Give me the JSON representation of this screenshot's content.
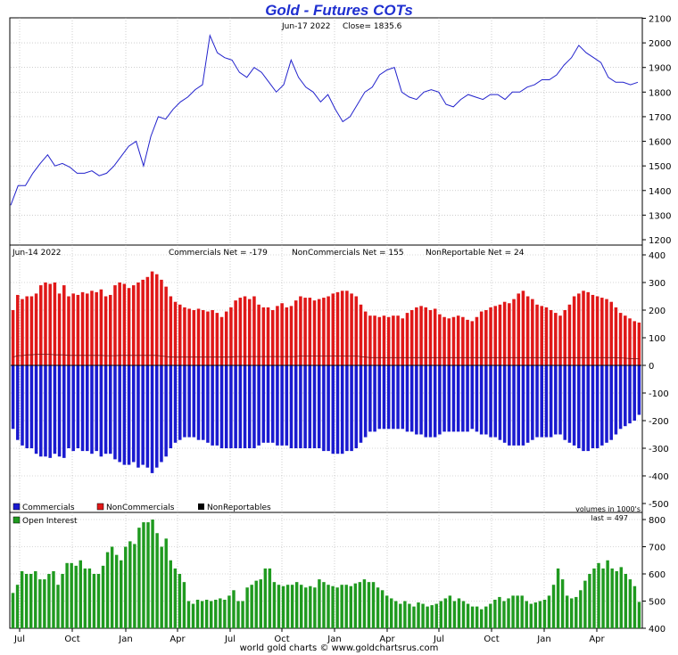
{
  "title": "Gold - Futures COTs",
  "footer": "world gold charts © www.goldchartsrus.com",
  "price_panel": {
    "date_label": "Jun-17  2022",
    "close_label": "Close= 1835.6"
  },
  "cot_panel": {
    "date_label": "Jun-14  2022",
    "commercials_label": "Commercials Net = -179",
    "noncommercials_label": "NonCommercials Net = 155",
    "nonreportable_label": "NonReportable Net = 24",
    "legend": [
      "Commercials",
      "NonCommercials",
      "NonReportables"
    ]
  },
  "oi_panel": {
    "legend": "Open Interest",
    "volumes_label": "volumes in 1000's",
    "last_label": "last = 497"
  },
  "colors": {
    "title": "#1f2fd0",
    "price_line": "#2222cc",
    "commercials": "#1a1ad0",
    "noncommercials": "#e01818",
    "nonreportables": "#000000",
    "open_interest": "#1f9a1f"
  },
  "chart_data": [
    {
      "type": "line",
      "title": "Gold - Futures COTs",
      "x_ticks": [
        "Jul",
        "Oct",
        "Jan",
        "Apr",
        "Jul",
        "Oct",
        "Jan",
        "Apr",
        "Jul",
        "Oct",
        "Jan",
        "Apr"
      ],
      "ylim": [
        1200,
        2100
      ],
      "y_ticks": [
        1200,
        1300,
        1400,
        1500,
        1600,
        1700,
        1800,
        1900,
        2000,
        2100
      ],
      "series": [
        {
          "values": [
            1340,
            1420,
            1420,
            1470,
            1510,
            1545,
            1500,
            1510,
            1495,
            1470,
            1470,
            1480,
            1460,
            1470,
            1500,
            1540,
            1580,
            1600,
            1500,
            1620,
            1700,
            1690,
            1730,
            1760,
            1780,
            1810,
            1830,
            2030,
            1960,
            1940,
            1930,
            1880,
            1860,
            1900,
            1880,
            1840,
            1800,
            1830,
            1930,
            1860,
            1820,
            1800,
            1760,
            1790,
            1730,
            1680,
            1700,
            1750,
            1800,
            1820,
            1870,
            1890,
            1900,
            1800,
            1780,
            1770,
            1800,
            1810,
            1800,
            1750,
            1740,
            1770,
            1790,
            1780,
            1770,
            1790,
            1790,
            1770,
            1800,
            1800,
            1820,
            1830,
            1850,
            1850,
            1870,
            1910,
            1940,
            1990,
            1960,
            1940,
            1920,
            1860,
            1840,
            1840,
            1830,
            1840
          ]
        }
      ]
    },
    {
      "type": "bar",
      "ylim": [
        -500,
        400
      ],
      "y_ticks": [
        -500,
        -400,
        -300,
        -200,
        -100,
        0,
        100,
        200,
        300,
        400
      ],
      "series": [
        {
          "name": "NonCommercials",
          "values": [
            200,
            255,
            240,
            250,
            250,
            260,
            290,
            300,
            295,
            300,
            260,
            290,
            250,
            260,
            255,
            265,
            260,
            270,
            265,
            275,
            250,
            255,
            290,
            300,
            295,
            280,
            290,
            300,
            310,
            320,
            340,
            330,
            310,
            285,
            250,
            230,
            220,
            210,
            205,
            200,
            205,
            200,
            195,
            200,
            190,
            175,
            195,
            210,
            235,
            245,
            250,
            240,
            250,
            220,
            210,
            210,
            200,
            215,
            225,
            210,
            215,
            235,
            250,
            245,
            245,
            235,
            240,
            245,
            250,
            260,
            265,
            270,
            270,
            260,
            250,
            220,
            195,
            180,
            180,
            175,
            180,
            175,
            180,
            180,
            170,
            190,
            200,
            210,
            215,
            210,
            200,
            205,
            185,
            175,
            170,
            175,
            180,
            175,
            165,
            160,
            175,
            195,
            200,
            210,
            215,
            220,
            230,
            225,
            240,
            260,
            270,
            250,
            240,
            220,
            215,
            210,
            200,
            190,
            180,
            200,
            220,
            250,
            260,
            270,
            265,
            255,
            250,
            245,
            240,
            230,
            210,
            190,
            180,
            170,
            160,
            155
          ]
        },
        {
          "name": "Commercials",
          "values": [
            -230,
            -270,
            -290,
            -300,
            -300,
            -320,
            -330,
            -330,
            -335,
            -320,
            -330,
            -335,
            -300,
            -310,
            -300,
            -310,
            -310,
            -320,
            -310,
            -330,
            -320,
            -320,
            -340,
            -350,
            -360,
            -360,
            -350,
            -370,
            -360,
            -370,
            -390,
            -370,
            -350,
            -330,
            -300,
            -280,
            -270,
            -260,
            -260,
            -260,
            -270,
            -270,
            -280,
            -290,
            -290,
            -300,
            -300,
            -300,
            -300,
            -300,
            -300,
            -300,
            -300,
            -290,
            -280,
            -280,
            -280,
            -290,
            -290,
            -290,
            -300,
            -300,
            -300,
            -300,
            -300,
            -300,
            -300,
            -310,
            -310,
            -320,
            -320,
            -320,
            -310,
            -310,
            -300,
            -280,
            -260,
            -240,
            -240,
            -230,
            -230,
            -230,
            -230,
            -230,
            -230,
            -240,
            -240,
            -250,
            -250,
            -260,
            -260,
            -260,
            -250,
            -240,
            -240,
            -240,
            -240,
            -240,
            -240,
            -230,
            -240,
            -250,
            -250,
            -260,
            -260,
            -270,
            -280,
            -290,
            -290,
            -290,
            -290,
            -280,
            -270,
            -260,
            -260,
            -260,
            -260,
            -250,
            -250,
            -270,
            -280,
            -290,
            -300,
            -310,
            -310,
            -300,
            -300,
            -290,
            -280,
            -270,
            -250,
            -230,
            -220,
            -210,
            -200,
            -179
          ]
        },
        {
          "name": "NonReportables",
          "values": [
            30,
            35,
            35,
            38,
            38,
            40,
            40,
            40,
            40,
            38,
            38,
            38,
            36,
            36,
            36,
            36,
            36,
            36,
            36,
            36,
            35,
            35,
            35,
            36,
            36,
            36,
            36,
            36,
            36,
            36,
            36,
            36,
            34,
            32,
            30,
            30,
            30,
            30,
            30,
            30,
            30,
            30,
            30,
            30,
            30,
            30,
            30,
            30,
            32,
            32,
            32,
            32,
            32,
            32,
            32,
            32,
            32,
            32,
            32,
            32,
            32,
            32,
            34,
            34,
            34,
            34,
            34,
            34,
            34,
            34,
            34,
            34,
            34,
            34,
            34,
            32,
            30,
            28,
            28,
            28,
            28,
            28,
            28,
            28,
            28,
            28,
            28,
            28,
            28,
            28,
            28,
            28,
            28,
            28,
            28,
            28,
            28,
            28,
            28,
            28,
            28,
            28,
            28,
            28,
            28,
            28,
            28,
            28,
            28,
            28,
            28,
            28,
            28,
            28,
            28,
            28,
            28,
            28,
            28,
            28,
            28,
            28,
            28,
            28,
            28,
            28,
            28,
            28,
            28,
            28,
            28,
            27,
            26,
            25,
            24,
            24
          ]
        }
      ]
    },
    {
      "type": "bar",
      "ylim": [
        400,
        850
      ],
      "y_ticks": [
        400,
        500,
        600,
        700,
        800
      ],
      "series": [
        {
          "name": "Open Interest",
          "values": [
            530,
            560,
            610,
            600,
            600,
            610,
            580,
            580,
            600,
            610,
            560,
            600,
            640,
            640,
            630,
            650,
            620,
            620,
            600,
            600,
            630,
            680,
            700,
            670,
            650,
            700,
            720,
            710,
            770,
            790,
            790,
            800,
            750,
            700,
            730,
            650,
            620,
            600,
            570,
            500,
            490,
            505,
            500,
            505,
            500,
            505,
            510,
            505,
            520,
            540,
            500,
            500,
            550,
            560,
            575,
            580,
            620,
            620,
            570,
            560,
            555,
            560,
            560,
            570,
            560,
            550,
            555,
            550,
            580,
            570,
            560,
            555,
            550,
            560,
            560,
            555,
            565,
            570,
            580,
            570,
            570,
            550,
            540,
            520,
            510,
            500,
            490,
            500,
            490,
            480,
            495,
            490,
            480,
            485,
            490,
            500,
            510,
            520,
            500,
            510,
            500,
            490,
            480,
            480,
            470,
            480,
            490,
            505,
            515,
            500,
            510,
            520,
            520,
            520,
            500,
            490,
            495,
            500,
            505,
            520,
            560,
            620,
            580,
            520,
            510,
            515,
            540,
            575,
            600,
            620,
            640,
            620,
            650,
            620,
            610,
            625,
            600,
            580,
            555,
            497
          ]
        }
      ]
    }
  ]
}
